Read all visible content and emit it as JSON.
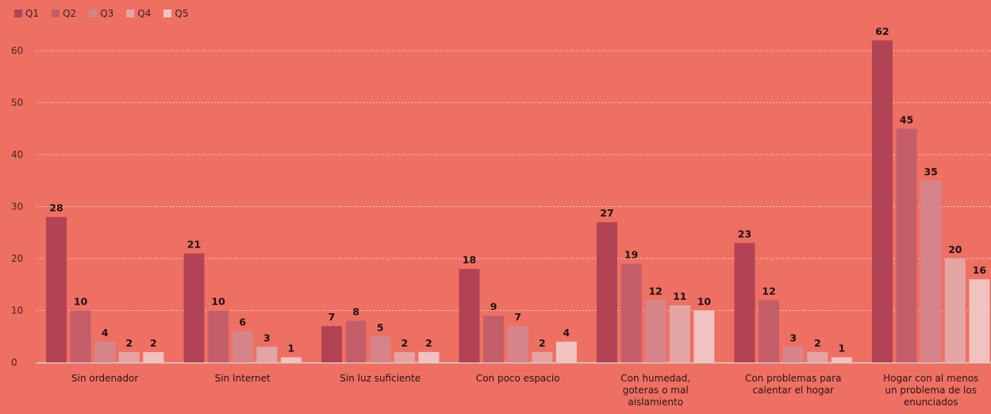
{
  "colors": {
    "background": "#ee7063",
    "grid": "#f7c4bd",
    "series": [
      "#b14354",
      "#c35e69",
      "#d5858a",
      "#e3a5a4",
      "#f0c2c0"
    ]
  },
  "chart_data": {
    "type": "bar",
    "categories": [
      [
        "Sin ordenador"
      ],
      [
        "Sin Internet"
      ],
      [
        "Sin luz suficiente"
      ],
      [
        "Con poco espacio"
      ],
      [
        "Con humedad,",
        "goteras o mal",
        "aislamiento"
      ],
      [
        "Con problemas para",
        "calentar el hogar"
      ],
      [
        "Hogar con al menos",
        "un problema de los",
        "enunciados"
      ]
    ],
    "series": [
      {
        "name": "Q1",
        "values": [
          28,
          21,
          7,
          18,
          27,
          23,
          62
        ]
      },
      {
        "name": "Q2",
        "values": [
          10,
          10,
          8,
          9,
          19,
          12,
          45
        ]
      },
      {
        "name": "Q3",
        "values": [
          4,
          6,
          5,
          7,
          12,
          3,
          35
        ]
      },
      {
        "name": "Q4",
        "values": [
          2,
          3,
          2,
          2,
          11,
          2,
          20
        ]
      },
      {
        "name": "Q5",
        "values": [
          2,
          1,
          2,
          4,
          10,
          1,
          16
        ]
      }
    ],
    "ylim": [
      0,
      62
    ],
    "yticks": [
      0,
      10,
      20,
      30,
      40,
      50,
      60
    ],
    "grid": true,
    "legend": "top-left"
  }
}
